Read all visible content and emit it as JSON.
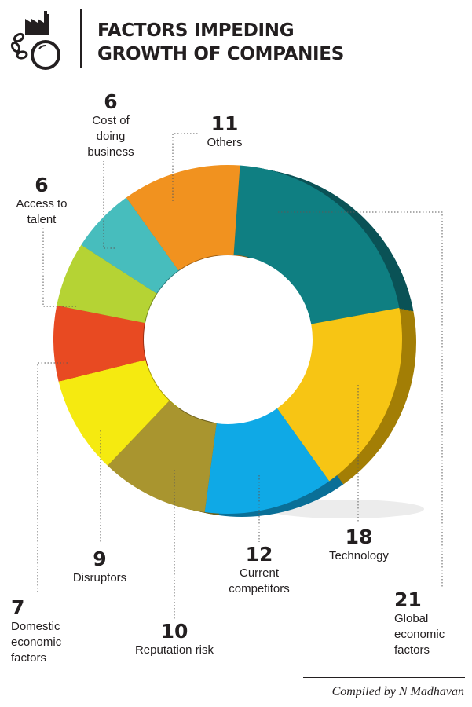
{
  "header": {
    "title_line1": "FACTORS IMPEDING",
    "title_line2": "GROWTH OF COMPANIES",
    "icon": "factory-ball-and-chain-icon"
  },
  "chart_data": {
    "type": "pie",
    "variant": "donut",
    "title": "FACTORS IMPEDING GROWTH OF COMPANIES",
    "slices": [
      {
        "label": "Global economic factors",
        "value": 21,
        "color": "#0f7f82",
        "side": "#0a5256"
      },
      {
        "label": "Technology",
        "value": 18,
        "color": "#f7c514",
        "side": "#a37e05"
      },
      {
        "label": "Current competitors",
        "value": 12,
        "color": "#0fa9e6",
        "side": "#0a6f97"
      },
      {
        "label": "Reputation risk",
        "value": 10,
        "color": "#a9952f",
        "side": "#6d601c"
      },
      {
        "label": "Disruptors",
        "value": 9,
        "color": "#f5ea10",
        "side": "#a59c07"
      },
      {
        "label": "Domestic economic factors",
        "value": 7,
        "color": "#e84a22",
        "side": "#9c2f13"
      },
      {
        "label": "Access to talent",
        "value": 6,
        "color": "#b5d334",
        "side": "#768a1f"
      },
      {
        "label": "Cost of doing business",
        "value": 6,
        "color": "#47bdbd",
        "side": "#2c7e7e"
      },
      {
        "label": "Others",
        "value": 11,
        "color": "#f1921f",
        "side": "#9f5e11"
      }
    ]
  },
  "labels": {
    "global": {
      "value": "21",
      "name": "Global\neconomic\nfactors"
    },
    "technology": {
      "value": "18",
      "name": "Technology"
    },
    "competitors": {
      "value": "12",
      "name": "Current\ncompetitors"
    },
    "reputation": {
      "value": "10",
      "name": "Reputation risk"
    },
    "disruptors": {
      "value": "9",
      "name": "Disruptors"
    },
    "domestic": {
      "value": "7",
      "name": "Domestic\neconomic\nfactors"
    },
    "talent": {
      "value": "6",
      "name": "Access to\ntalent"
    },
    "cost": {
      "value": "6",
      "name": "Cost of\ndoing\nbusiness"
    },
    "others": {
      "value": "11",
      "name": "Others"
    }
  },
  "footer": {
    "credit": "Compiled by N Madhavan"
  }
}
